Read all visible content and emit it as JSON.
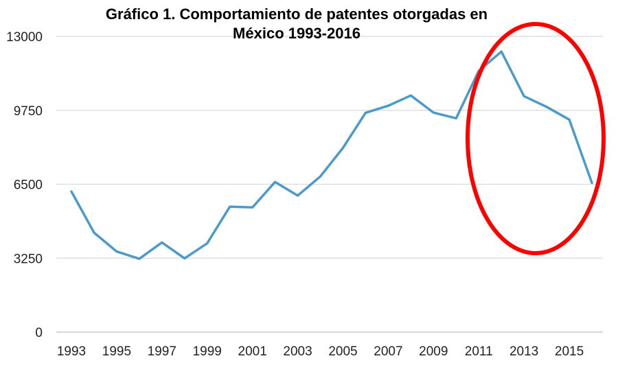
{
  "chart_data": {
    "type": "line",
    "title_lines": [
      "Gráfico 1. Comportamiento de patentes otorgadas en",
      "México 1993-2016"
    ],
    "x": [
      1993,
      1994,
      1995,
      1996,
      1997,
      1998,
      1999,
      2000,
      2001,
      2002,
      2003,
      2004,
      2005,
      2006,
      2007,
      2008,
      2009,
      2010,
      2011,
      2012,
      2013,
      2014,
      2015,
      2016
    ],
    "x_tick_labels": [
      "1993",
      "1995",
      "1997",
      "1999",
      "2001",
      "2003",
      "2005",
      "2007",
      "2009",
      "2011",
      "2013",
      "2015"
    ],
    "y_tick_labels": [
      "0",
      "3250",
      "6500",
      "9750",
      "13000"
    ],
    "series": [
      {
        "values": [
          6180,
          4370,
          3540,
          3220,
          3940,
          3240,
          3900,
          5510,
          5480,
          6600,
          6000,
          6840,
          8100,
          9640,
          9950,
          10400,
          9650,
          9400,
          11480,
          12330,
          10370,
          9900,
          9340,
          6560
        ],
        "color": "#4a9acb"
      }
    ],
    "ylim": [
      0,
      13000
    ],
    "xlim": [
      1993,
      2016
    ],
    "grid": true,
    "annotation_color": "#ff0000"
  }
}
